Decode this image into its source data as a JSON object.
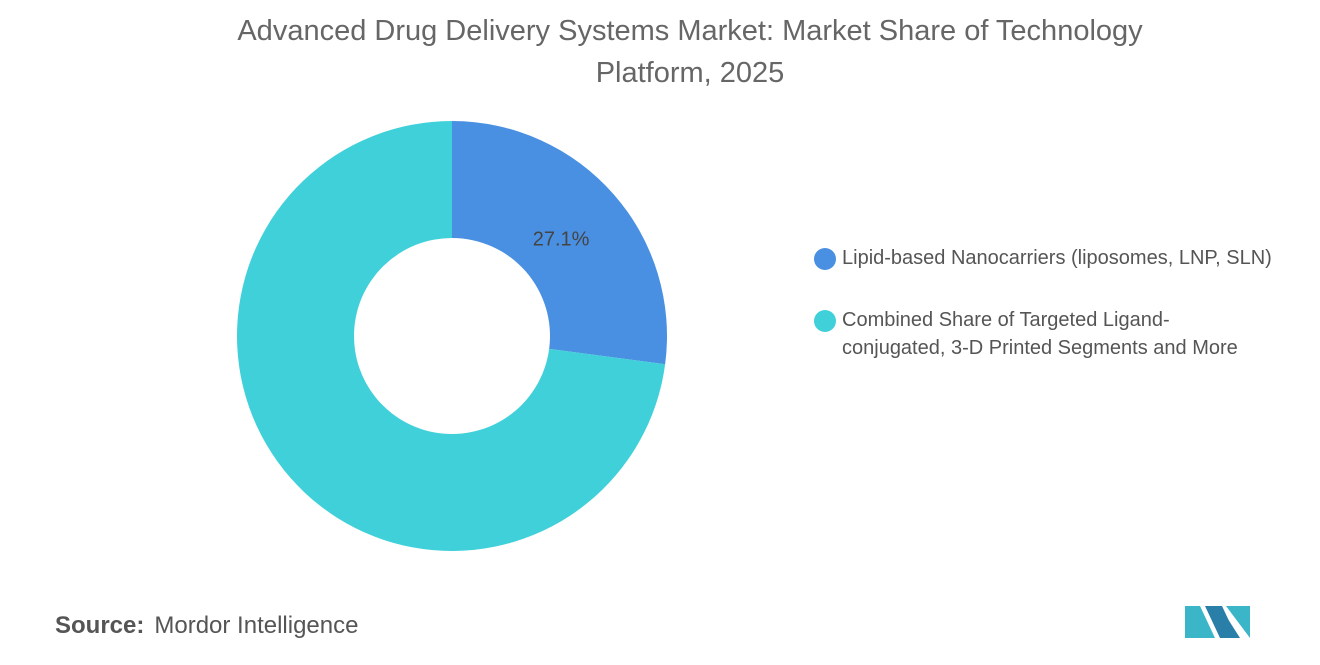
{
  "chart_data": {
    "type": "donut",
    "title": "Advanced Drug Delivery Systems Market: Market Share of Technology Platform, 2025",
    "categories": [
      "Lipid-based Nanocarriers (liposomes, LNP, SLN)",
      "Combined Share of Targeted Ligand-conjugated, 3-D Printed Segments and More"
    ],
    "values": [
      27.1,
      72.9
    ],
    "value_labels": [
      "27.1%",
      null
    ],
    "colors": [
      "#4a90e2",
      "#40d0da"
    ],
    "source_label": "Source:",
    "source": "Mordor Intelligence"
  }
}
